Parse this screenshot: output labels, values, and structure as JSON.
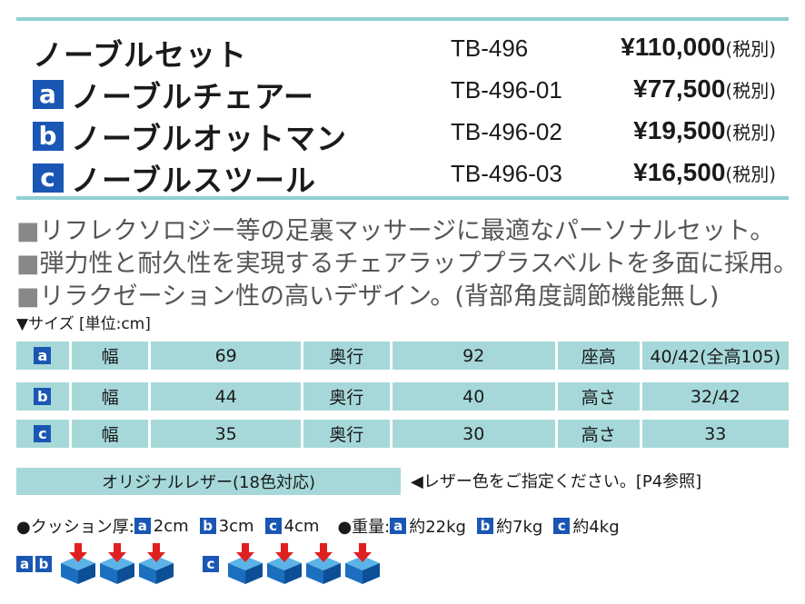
{
  "products": [
    {
      "badge": "",
      "name": "ノーブルセット",
      "code": "TB-496",
      "price": "¥110,000",
      "tax": "(税別)"
    },
    {
      "badge": "a",
      "name": "ノーブルチェアー",
      "code": "TB-496-01",
      "price": "¥77,500",
      "tax": "(税別)"
    },
    {
      "badge": "b",
      "name": "ノーブルオットマン",
      "code": "TB-496-02",
      "price": "¥19,500",
      "tax": "(税別)"
    },
    {
      "badge": "c",
      "name": "ノーブルスツール",
      "code": "TB-496-03",
      "price": "¥16,500",
      "tax": "(税別)"
    }
  ],
  "description": [
    {
      "bullet": "■",
      "text": "リフレクソロジー等の足裏マッサージに最適なパーソナルセット。"
    },
    {
      "bullet": "■",
      "text": "弾力性と耐久性を実現するチェアラッププラスベルトを多面に採用。"
    },
    {
      "bullet": "■",
      "text": "リラクゼーション性の高いデザイン。(背部角度調節機能無し)"
    }
  ],
  "size_label": "▼サイズ [単位:cm]",
  "size_table": [
    {
      "badge": "a",
      "w_label": "幅",
      "w": "69",
      "d_label": "奥行",
      "d": "92",
      "h_label": "座高",
      "h": "40/42(全高105)"
    },
    {
      "badge": "b",
      "w_label": "幅",
      "w": "44",
      "d_label": "奥行",
      "d": "40",
      "h_label": "高さ",
      "h": "32/42"
    },
    {
      "badge": "c",
      "w_label": "幅",
      "w": "35",
      "d_label": "奥行",
      "d": "30",
      "h_label": "高さ",
      "h": "33"
    }
  ],
  "leather": {
    "label": "オリジナルレザー(18色対応)",
    "note": "◀レザー色をご指定ください。[P4参照]"
  },
  "cushion": {
    "label": "●クッション厚:",
    "a": "2cm",
    "b": "3cm",
    "c": "4cm"
  },
  "weight": {
    "label": "●重量:",
    "a": "約22kg",
    "b": "約7kg",
    "c": "約4kg"
  },
  "badges": {
    "a": "a",
    "b": "b",
    "c": "c"
  },
  "colors": {
    "accent": "#1a57b5",
    "table_bg": "#a6d8d9",
    "rule": "#8fd0d3",
    "arrow": "#e02020"
  },
  "icons": {
    "cushion": "cushion-cube-icon",
    "arrow": "down-arrow-icon"
  }
}
